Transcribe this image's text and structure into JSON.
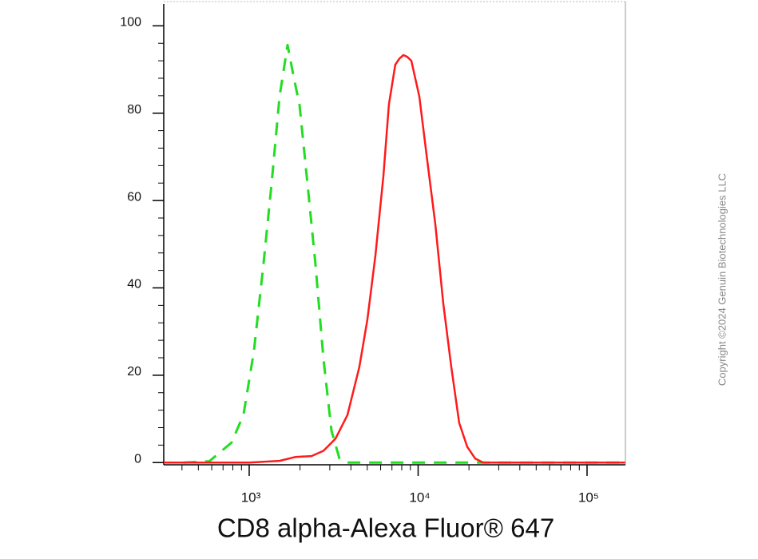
{
  "chart_data": {
    "type": "line",
    "x_label": "CD8 alpha-Alexa Fluor® 647",
    "copyright": "Copyright ©2024 Genuin Biotechnologies LLC",
    "xscale": "log",
    "xlim": [
      312,
      168700
    ],
    "ylim": [
      -0.5,
      105
    ],
    "xticks": [
      {
        "value": 1000,
        "label": "10³"
      },
      {
        "value": 10000,
        "label": "10⁴"
      },
      {
        "value": 100000,
        "label": "10⁵"
      }
    ],
    "xminorticks": [
      400,
      500,
      600,
      700,
      800,
      900,
      2000,
      3000,
      4000,
      5000,
      6000,
      7000,
      8000,
      9000,
      20000,
      30000,
      40000,
      50000,
      60000,
      70000,
      80000,
      90000
    ],
    "yticks": [
      0,
      20,
      40,
      60,
      80,
      100
    ],
    "yminorticks": [
      4,
      8,
      12,
      16,
      24,
      28,
      32,
      36,
      44,
      48,
      52,
      56,
      64,
      68,
      72,
      76,
      84,
      88,
      92,
      96
    ],
    "series": [
      {
        "color": "#22dd22",
        "dashed": true,
        "x": [
          409,
          581,
          787,
          926,
          1067,
          1216,
          1356,
          1513,
          1687,
          1841,
          1986,
          2214,
          2467,
          2752,
          3069,
          3422,
          3818,
          10000,
          100000,
          168000
        ],
        "values": [
          0,
          0.3,
          4.6,
          11,
          25.5,
          45.5,
          63.8,
          83.8,
          95.6,
          88,
          81.9,
          63.8,
          45.5,
          23.7,
          7.3,
          0.9,
          0,
          0,
          0,
          0
        ]
      },
      {
        "color": "#ff1a1a",
        "dashed": false,
        "x": [
          312,
          1000,
          1513,
          1880,
          2338,
          2752,
          3244,
          3818,
          4487,
          5010,
          5589,
          6227,
          6715,
          7328,
          7745,
          8180,
          8630,
          9120,
          10170,
          11330,
          12640,
          14090,
          15710,
          17510,
          19540,
          21780,
          24270,
          168000
        ],
        "values": [
          0,
          0,
          0.4,
          1.3,
          1.5,
          2.7,
          5.5,
          10.9,
          21.9,
          32.8,
          47.4,
          65.6,
          82.0,
          91.1,
          92.5,
          93.3,
          92.9,
          92.0,
          83.8,
          69.2,
          54.6,
          36.4,
          21.9,
          9.1,
          3.6,
          0.9,
          0,
          0
        ]
      }
    ]
  }
}
